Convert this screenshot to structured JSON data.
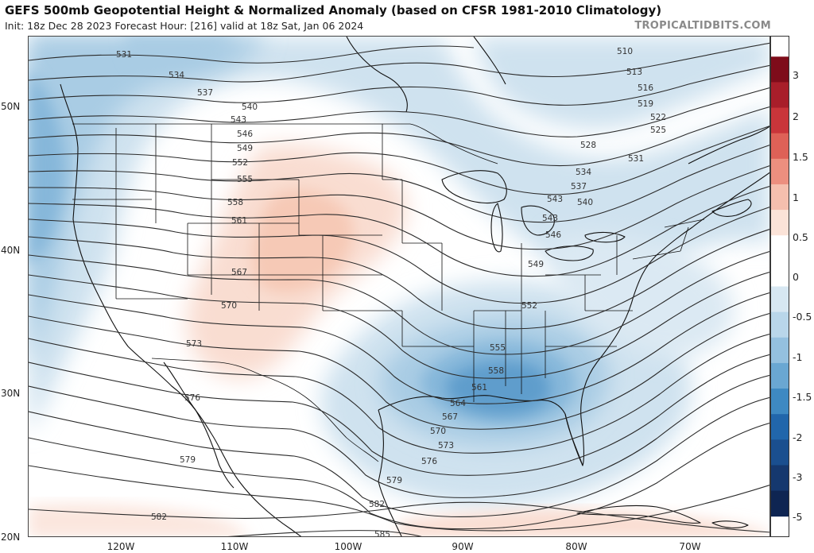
{
  "header": {
    "title": "GEFS 500mb Geopotential Height & Normalized Anomaly (based on CFSR 1981-2010 Climatology)",
    "subtitle": "Init: 18z Dec 28 2023   Forecast Hour: [216]   valid at 18z Sat, Jan 06 2024",
    "site": "TROPICALTIDBITS.COM"
  },
  "map": {
    "lat_labels": [
      "50N",
      "40N",
      "30N",
      "20N"
    ],
    "lon_labels": [
      "120W",
      "110W",
      "100W",
      "90W",
      "80W",
      "70W"
    ],
    "contour_labels": [
      "510",
      "513",
      "516",
      "519",
      "522",
      "525",
      "528",
      "531",
      "534",
      "537",
      "540",
      "543",
      "546",
      "549",
      "552",
      "555",
      "558",
      "561",
      "564",
      "567",
      "570",
      "573",
      "576",
      "579",
      "582",
      "585"
    ],
    "colors": {
      "negative_anomaly": "#4a90c6",
      "positive_anomaly": "#f3b7a3",
      "contour": "#2b2b2b"
    }
  },
  "colorbar": {
    "labels": [
      "3",
      "2",
      "1.5",
      "1",
      "0.5",
      "0",
      "-0.5",
      "-1",
      "-1.5",
      "-2",
      "-3",
      "-5"
    ],
    "colors": [
      "#7e0c1a",
      "#a81e2a",
      "#c9353a",
      "#de6157",
      "#ec8f7f",
      "#f5bfae",
      "#fbe3d8",
      "#ffffff",
      "#ffffff",
      "#d7e7f2",
      "#b9d6ea",
      "#94c0df",
      "#6aa7d2",
      "#3e89c2",
      "#2166ab",
      "#1a4f8f",
      "#15386e",
      "#0e2552"
    ]
  }
}
